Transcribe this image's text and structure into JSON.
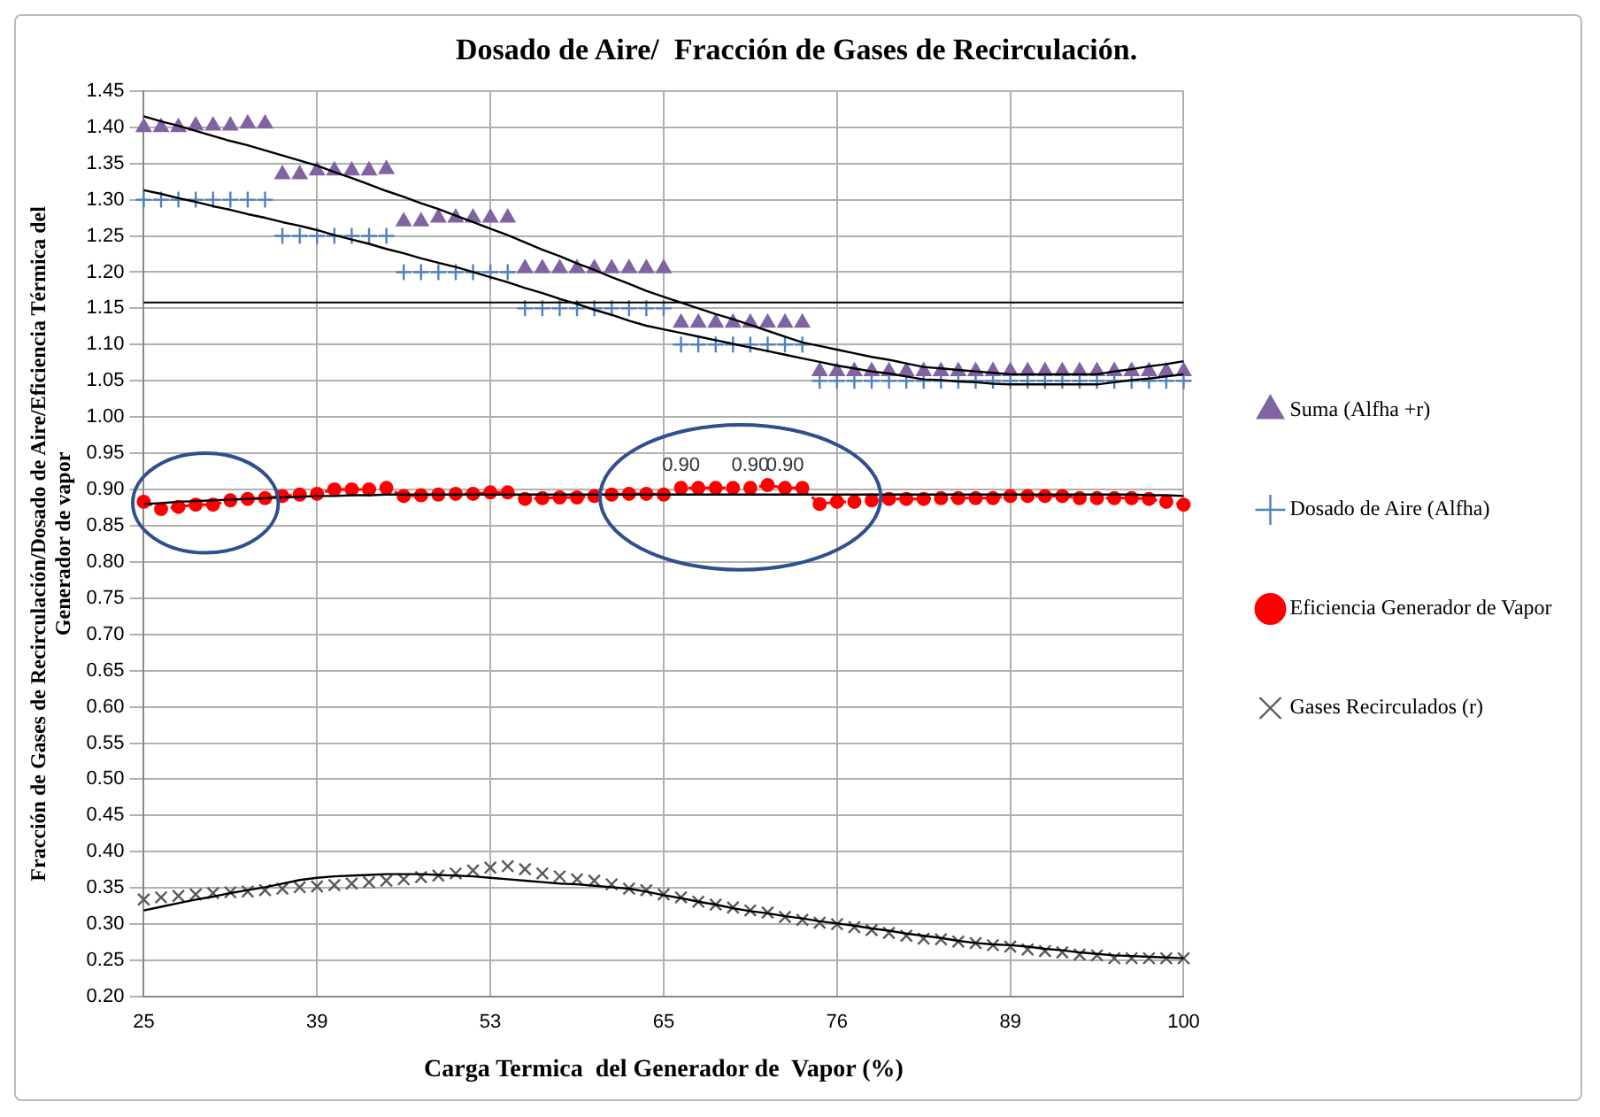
{
  "chart_data": {
    "type": "scatter",
    "title": "Dosado de Aire/  Fracción de Gases de Recirculación.",
    "xlabel": "Carga Termica  del Generador de  Vapor (%)",
    "ylabel": "Fracción de Gases de Recirculación/Dosado de Aire/Eficiencia Térmica del Generador de vapor",
    "categories": [
      "25",
      null,
      null,
      null,
      null,
      null,
      null,
      null,
      null,
      null,
      "39",
      null,
      null,
      null,
      null,
      null,
      null,
      null,
      null,
      null,
      "53",
      null,
      null,
      null,
      null,
      null,
      null,
      null,
      null,
      null,
      "65",
      null,
      null,
      null,
      null,
      null,
      null,
      null,
      null,
      null,
      "76",
      null,
      null,
      null,
      null,
      null,
      null,
      null,
      null,
      null,
      "89",
      null,
      null,
      null,
      null,
      null,
      null,
      null,
      null,
      null,
      "100"
    ],
    "ylim": [
      0.2,
      1.45
    ],
    "yticks": [
      {
        "value": 0.2,
        "label": "0.20"
      },
      {
        "value": 0.25,
        "label": "0.25"
      },
      {
        "value": 0.3,
        "label": "0.30"
      },
      {
        "value": 0.35,
        "label": "0.35"
      },
      {
        "value": 0.4,
        "label": "0.40"
      },
      {
        "value": 0.45,
        "label": "0.45"
      },
      {
        "value": 0.5,
        "label": "0.50"
      },
      {
        "value": 0.55,
        "label": "0.55"
      },
      {
        "value": 0.6,
        "label": "0.60"
      },
      {
        "value": 0.65,
        "label": "0.65"
      },
      {
        "value": 0.7,
        "label": "0.70"
      },
      {
        "value": 0.75,
        "label": "0.75"
      },
      {
        "value": 0.8,
        "label": "0.80"
      },
      {
        "value": 0.85,
        "label": "0.85"
      },
      {
        "value": 0.9,
        "label": "0.90"
      },
      {
        "value": 0.95,
        "label": "0.95"
      },
      {
        "value": 1.0,
        "label": "1.00"
      },
      {
        "value": 1.05,
        "label": "1.05"
      },
      {
        "value": 1.1,
        "label": "1.10"
      },
      {
        "value": 1.15,
        "label": "1.15"
      },
      {
        "value": 1.2,
        "label": "1.20"
      },
      {
        "value": 1.25,
        "label": "1.25"
      },
      {
        "value": 1.3,
        "label": "1.30"
      },
      {
        "value": 1.35,
        "label": "1.35"
      },
      {
        "value": 1.4,
        "label": "1.40"
      },
      {
        "value": 1.45,
        "label": "1.45"
      }
    ],
    "grid": true,
    "legend": "right",
    "ref_lines": [
      {
        "axis": "y",
        "value": 1.158,
        "color": "#000000"
      }
    ],
    "series": [
      {
        "name": "Suma (Alfha +r)",
        "marker": "triangle",
        "color": "#8064a2",
        "values": [
          1.4,
          1.4,
          1.4,
          1.402,
          1.402,
          1.402,
          1.405,
          1.405,
          1.335,
          1.335,
          1.34,
          1.34,
          1.34,
          1.34,
          1.342,
          1.27,
          1.27,
          1.275,
          1.275,
          1.275,
          1.275,
          1.275,
          1.205,
          1.205,
          1.205,
          1.205,
          1.205,
          1.205,
          1.205,
          1.205,
          1.205,
          1.13,
          1.13,
          1.13,
          1.13,
          1.13,
          1.13,
          1.13,
          1.13,
          1.063,
          1.063,
          1.063,
          1.063,
          1.063,
          1.063,
          1.063,
          1.063,
          1.063,
          1.063,
          1.063,
          1.063,
          1.063,
          1.063,
          1.063,
          1.063,
          1.063,
          1.063,
          1.063,
          1.063,
          1.063,
          1.063
        ]
      },
      {
        "name": "Dosado de Aire (Alfha)",
        "marker": "cross",
        "color": "#4f81bd",
        "values": [
          1.3,
          1.3,
          1.3,
          1.3,
          1.3,
          1.3,
          1.3,
          1.3,
          1.25,
          1.25,
          1.25,
          1.25,
          1.25,
          1.25,
          1.25,
          1.2,
          1.2,
          1.2,
          1.2,
          1.2,
          1.2,
          1.2,
          1.15,
          1.15,
          1.15,
          1.15,
          1.15,
          1.15,
          1.15,
          1.15,
          1.15,
          1.1,
          1.1,
          1.1,
          1.1,
          1.1,
          1.1,
          1.1,
          1.1,
          1.05,
          1.05,
          1.05,
          1.05,
          1.05,
          1.05,
          1.05,
          1.05,
          1.05,
          1.05,
          1.05,
          1.05,
          1.05,
          1.05,
          1.05,
          1.05,
          1.05,
          1.05,
          1.05,
          1.05,
          1.05,
          1.05
        ]
      },
      {
        "name": "Eficiencia Generador de Vapor",
        "type": "line",
        "marker": "circle",
        "line_style": "dashed",
        "color": "#ff0000",
        "values": [
          0.883,
          0.873,
          0.876,
          0.879,
          0.879,
          0.885,
          0.887,
          0.888,
          0.891,
          0.893,
          0.894,
          0.9,
          0.9,
          0.9,
          0.902,
          0.891,
          0.892,
          0.893,
          0.894,
          0.894,
          0.896,
          0.896,
          0.887,
          0.888,
          0.889,
          0.889,
          0.891,
          0.893,
          0.894,
          0.894,
          0.893,
          0.902,
          0.902,
          0.902,
          0.902,
          0.902,
          0.906,
          0.902,
          0.902,
          0.88,
          0.883,
          0.883,
          0.885,
          0.887,
          0.887,
          0.887,
          0.888,
          0.888,
          0.888,
          0.888,
          0.891,
          0.891,
          0.891,
          0.891,
          0.888,
          0.888,
          0.888,
          0.888,
          0.887,
          0.883,
          0.879
        ],
        "value_labels": [
          null,
          null,
          null,
          null,
          null,
          null,
          null,
          null,
          null,
          null,
          null,
          null,
          null,
          null,
          null,
          null,
          null,
          null,
          null,
          null,
          null,
          null,
          null,
          null,
          null,
          null,
          null,
          null,
          null,
          null,
          null,
          "0.90",
          null,
          null,
          null,
          "0.90",
          null,
          "0.90",
          null,
          null,
          null,
          null,
          null,
          null,
          null,
          null,
          null,
          null,
          null,
          null,
          null,
          null,
          null,
          null,
          null,
          null,
          null,
          null,
          null,
          null,
          null
        ]
      },
      {
        "name": "Gases Recirculados (r)",
        "marker": "x",
        "color": "#595959",
        "values": [
          0.334,
          0.337,
          0.339,
          0.341,
          0.343,
          0.344,
          0.345,
          0.347,
          0.349,
          0.351,
          0.352,
          0.354,
          0.356,
          0.358,
          0.36,
          0.362,
          0.365,
          0.367,
          0.37,
          0.374,
          0.378,
          0.38,
          0.376,
          0.37,
          0.366,
          0.362,
          0.36,
          0.355,
          0.349,
          0.347,
          0.341,
          0.337,
          0.331,
          0.327,
          0.323,
          0.319,
          0.316,
          0.31,
          0.306,
          0.302,
          0.3,
          0.296,
          0.292,
          0.288,
          0.284,
          0.28,
          0.279,
          0.276,
          0.274,
          0.271,
          0.269,
          0.265,
          0.263,
          0.261,
          0.258,
          0.257,
          0.253,
          0.253,
          0.253,
          0.253,
          0.253
        ]
      },
      {
        "type": "line",
        "marker": "none",
        "color": "#000000",
        "values": [
          1.415,
          1.408,
          1.402,
          1.395,
          1.388,
          1.381,
          1.375,
          1.368,
          1.361,
          1.354,
          1.347,
          1.338,
          1.33,
          1.321,
          1.312,
          1.304,
          1.295,
          1.287,
          1.278,
          1.269,
          1.26,
          1.251,
          1.241,
          1.231,
          1.222,
          1.212,
          1.203,
          1.193,
          1.184,
          1.174,
          1.166,
          1.158,
          1.15,
          1.142,
          1.135,
          1.127,
          1.119,
          1.111,
          1.103,
          1.098,
          1.093,
          1.088,
          1.083,
          1.079,
          1.074,
          1.069,
          1.067,
          1.065,
          1.063,
          1.061,
          1.059,
          1.059,
          1.059,
          1.059,
          1.059,
          1.059,
          1.063,
          1.066,
          1.07,
          1.073,
          1.077
        ]
      },
      {
        "type": "line",
        "marker": "none",
        "color": "#000000",
        "values": [
          1.313,
          1.308,
          1.302,
          1.297,
          1.291,
          1.286,
          1.28,
          1.275,
          1.269,
          1.264,
          1.258,
          1.251,
          1.245,
          1.239,
          1.232,
          1.226,
          1.219,
          1.213,
          1.207,
          1.2,
          1.193,
          1.186,
          1.178,
          1.171,
          1.163,
          1.156,
          1.148,
          1.141,
          1.133,
          1.126,
          1.121,
          1.116,
          1.111,
          1.106,
          1.101,
          1.096,
          1.091,
          1.086,
          1.081,
          1.076,
          1.071,
          1.067,
          1.063,
          1.06,
          1.056,
          1.052,
          1.051,
          1.049,
          1.048,
          1.046,
          1.045,
          1.045,
          1.045,
          1.045,
          1.045,
          1.045,
          1.048,
          1.051,
          1.053,
          1.056,
          1.059
        ]
      },
      {
        "type": "line",
        "marker": "none",
        "color": "#000000",
        "values": [
          0.88,
          0.881,
          0.883,
          0.884,
          0.885,
          0.886,
          0.887,
          0.888,
          0.889,
          0.89,
          0.891,
          0.891,
          0.892,
          0.892,
          0.893,
          0.893,
          0.893,
          0.893,
          0.893,
          0.893,
          0.893,
          0.893,
          0.893,
          0.893,
          0.893,
          0.893,
          0.893,
          0.893,
          0.893,
          0.893,
          0.893,
          0.893,
          0.893,
          0.893,
          0.893,
          0.893,
          0.893,
          0.893,
          0.893,
          0.893,
          0.893,
          0.893,
          0.893,
          0.893,
          0.893,
          0.893,
          0.893,
          0.893,
          0.893,
          0.893,
          0.893,
          0.893,
          0.893,
          0.893,
          0.893,
          0.893,
          0.893,
          0.893,
          0.892,
          0.892,
          0.891
        ]
      },
      {
        "type": "line",
        "marker": "none",
        "color": "#000000",
        "values": [
          0.319,
          0.324,
          0.329,
          0.334,
          0.338,
          0.343,
          0.347,
          0.351,
          0.356,
          0.361,
          0.364,
          0.366,
          0.367,
          0.368,
          0.369,
          0.369,
          0.369,
          0.368,
          0.367,
          0.366,
          0.364,
          0.362,
          0.36,
          0.358,
          0.356,
          0.355,
          0.353,
          0.351,
          0.349,
          0.345,
          0.34,
          0.336,
          0.331,
          0.327,
          0.322,
          0.318,
          0.315,
          0.311,
          0.308,
          0.304,
          0.301,
          0.298,
          0.294,
          0.291,
          0.287,
          0.284,
          0.281,
          0.277,
          0.274,
          0.272,
          0.271,
          0.269,
          0.266,
          0.264,
          0.261,
          0.259,
          0.257,
          0.256,
          0.255,
          0.254,
          0.253
        ]
      }
    ]
  }
}
